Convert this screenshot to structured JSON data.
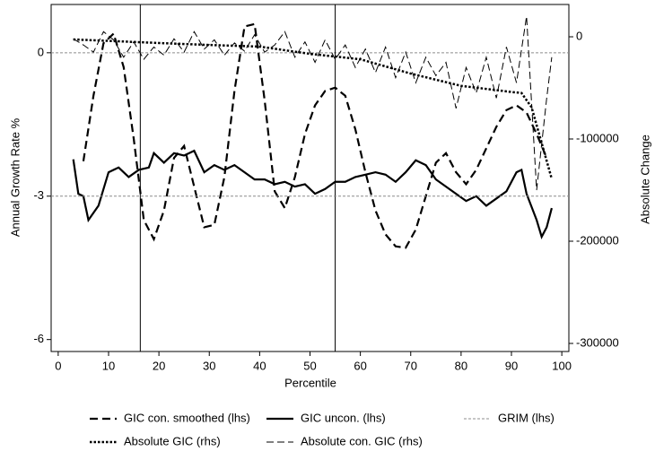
{
  "chart_data": {
    "type": "line",
    "x_label": "Percentile",
    "y_label": "Annual Growth Rate %",
    "y2_label": "Absolute Change",
    "xlim": [
      -1.4,
      101.4
    ],
    "xticks": [
      0,
      10,
      20,
      30,
      40,
      50,
      60,
      70,
      80,
      90,
      100
    ],
    "ylim": [
      -6.25,
      1.01
    ],
    "yticks": [
      -6,
      -3,
      0
    ],
    "y2lim": [
      -307900,
      31600
    ],
    "y2ticks": [
      -300000,
      -200000,
      -100000,
      0
    ],
    "vlines": [
      16.3,
      55
    ],
    "hlines": [
      0
    ],
    "series": [
      {
        "name": "GIC con. smoothed (lhs)",
        "color": "#000000",
        "dash": "9,5",
        "width": 2.2,
        "x": [
          5,
          7,
          9,
          11,
          13,
          15,
          17,
          19,
          21,
          23,
          25,
          27,
          29,
          31,
          33,
          35,
          37,
          39,
          41,
          43,
          45,
          47,
          49,
          51,
          53,
          55,
          57,
          59,
          61,
          63,
          65,
          67,
          69,
          71,
          73,
          75,
          77,
          79,
          81,
          83,
          85,
          87,
          89,
          91,
          93,
          95,
          97
        ],
        "values": [
          -2.27,
          -0.9,
          0.2,
          0.4,
          -0.3,
          -1.8,
          -3.5,
          -3.9,
          -3.3,
          -2.2,
          -1.95,
          -2.8,
          -3.65,
          -3.6,
          -2.6,
          -0.8,
          0.55,
          0.6,
          -1.0,
          -2.9,
          -3.25,
          -2.6,
          -1.7,
          -1.1,
          -0.8,
          -0.73,
          -0.9,
          -1.6,
          -2.5,
          -3.3,
          -3.8,
          -4.05,
          -4.08,
          -3.7,
          -3.0,
          -2.3,
          -2.1,
          -2.5,
          -2.75,
          -2.45,
          -2.0,
          -1.55,
          -1.2,
          -1.1,
          -1.25,
          -1.7,
          -2.2
        ]
      },
      {
        "name": "GIC uncon. (lhs)",
        "color": "#000000",
        "dash": "none",
        "width": 2.2,
        "x": [
          3,
          4,
          5,
          6,
          8,
          10,
          12,
          14,
          16,
          18,
          19,
          21,
          23,
          25,
          27,
          29,
          31,
          33,
          35,
          37,
          39,
          41,
          43,
          45,
          47,
          49,
          51,
          53,
          55,
          57,
          59,
          61,
          63,
          65,
          67,
          69,
          71,
          73,
          75,
          77,
          79,
          81,
          83,
          85,
          87,
          89,
          91,
          92,
          93,
          95,
          96,
          97,
          98
        ],
        "values": [
          -2.23,
          -2.95,
          -3.0,
          -3.5,
          -3.2,
          -2.5,
          -2.4,
          -2.6,
          -2.45,
          -2.4,
          -2.1,
          -2.3,
          -2.1,
          -2.15,
          -2.05,
          -2.5,
          -2.35,
          -2.45,
          -2.35,
          -2.5,
          -2.65,
          -2.65,
          -2.75,
          -2.7,
          -2.8,
          -2.75,
          -2.95,
          -2.85,
          -2.7,
          -2.7,
          -2.6,
          -2.55,
          -2.5,
          -2.55,
          -2.7,
          -2.5,
          -2.25,
          -2.35,
          -2.65,
          -2.8,
          -2.95,
          -3.1,
          -3.0,
          -3.2,
          -3.05,
          -2.9,
          -2.5,
          -2.45,
          -2.95,
          -3.5,
          -3.85,
          -3.65,
          -3.25
        ]
      },
      {
        "name": "GRIM (lhs)",
        "color": "#8c8c8c",
        "dash": "3,2",
        "width": 1,
        "x": [
          -1.4,
          101.4
        ],
        "values": [
          -3,
          -3
        ]
      },
      {
        "name": "Absolute GIC (rhs)",
        "color": "#000000",
        "dash": "2.5,2",
        "width": 2.5,
        "axis": "y2",
        "x": [
          3,
          10,
          20,
          30,
          40,
          50,
          60,
          70,
          80,
          90,
          92,
          94,
          96,
          98
        ],
        "values": [
          -2600,
          -4000,
          -6100,
          -8000,
          -9600,
          -16700,
          -22000,
          -36000,
          -48000,
          -54000,
          -55000,
          -69000,
          -104000,
          -139000
        ]
      },
      {
        "name": "Absolute con. GIC (rhs)",
        "color": "#000000",
        "dash": "8,4",
        "width": 1,
        "axis": "y2",
        "x": [
          3,
          5,
          7,
          9,
          11,
          13,
          15,
          17,
          19,
          21,
          23,
          25,
          27,
          29,
          31,
          33,
          35,
          37,
          39,
          41,
          43,
          45,
          47,
          49,
          51,
          53,
          55,
          57,
          59,
          61,
          63,
          65,
          67,
          69,
          71,
          73,
          75,
          77,
          79,
          81,
          83,
          85,
          87,
          89,
          91,
          93,
          95,
          97,
          98
        ],
        "values": [
          -2000,
          -8000,
          -15000,
          5000,
          -3000,
          -20000,
          -5000,
          -22000,
          -10000,
          -18000,
          -2000,
          -15000,
          5000,
          -12000,
          -3000,
          -18000,
          -6000,
          -14000,
          2000,
          -15000,
          -8000,
          5000,
          -20000,
          -5000,
          -25000,
          -3000,
          -22000,
          -8000,
          -30000,
          -12000,
          -35000,
          -10000,
          -40000,
          -15000,
          -45000,
          -20000,
          -38000,
          -25000,
          -70000,
          -30000,
          -55000,
          -20000,
          -60000,
          -10000,
          -45000,
          20000,
          -150000,
          -60000,
          -20000
        ]
      }
    ]
  }
}
